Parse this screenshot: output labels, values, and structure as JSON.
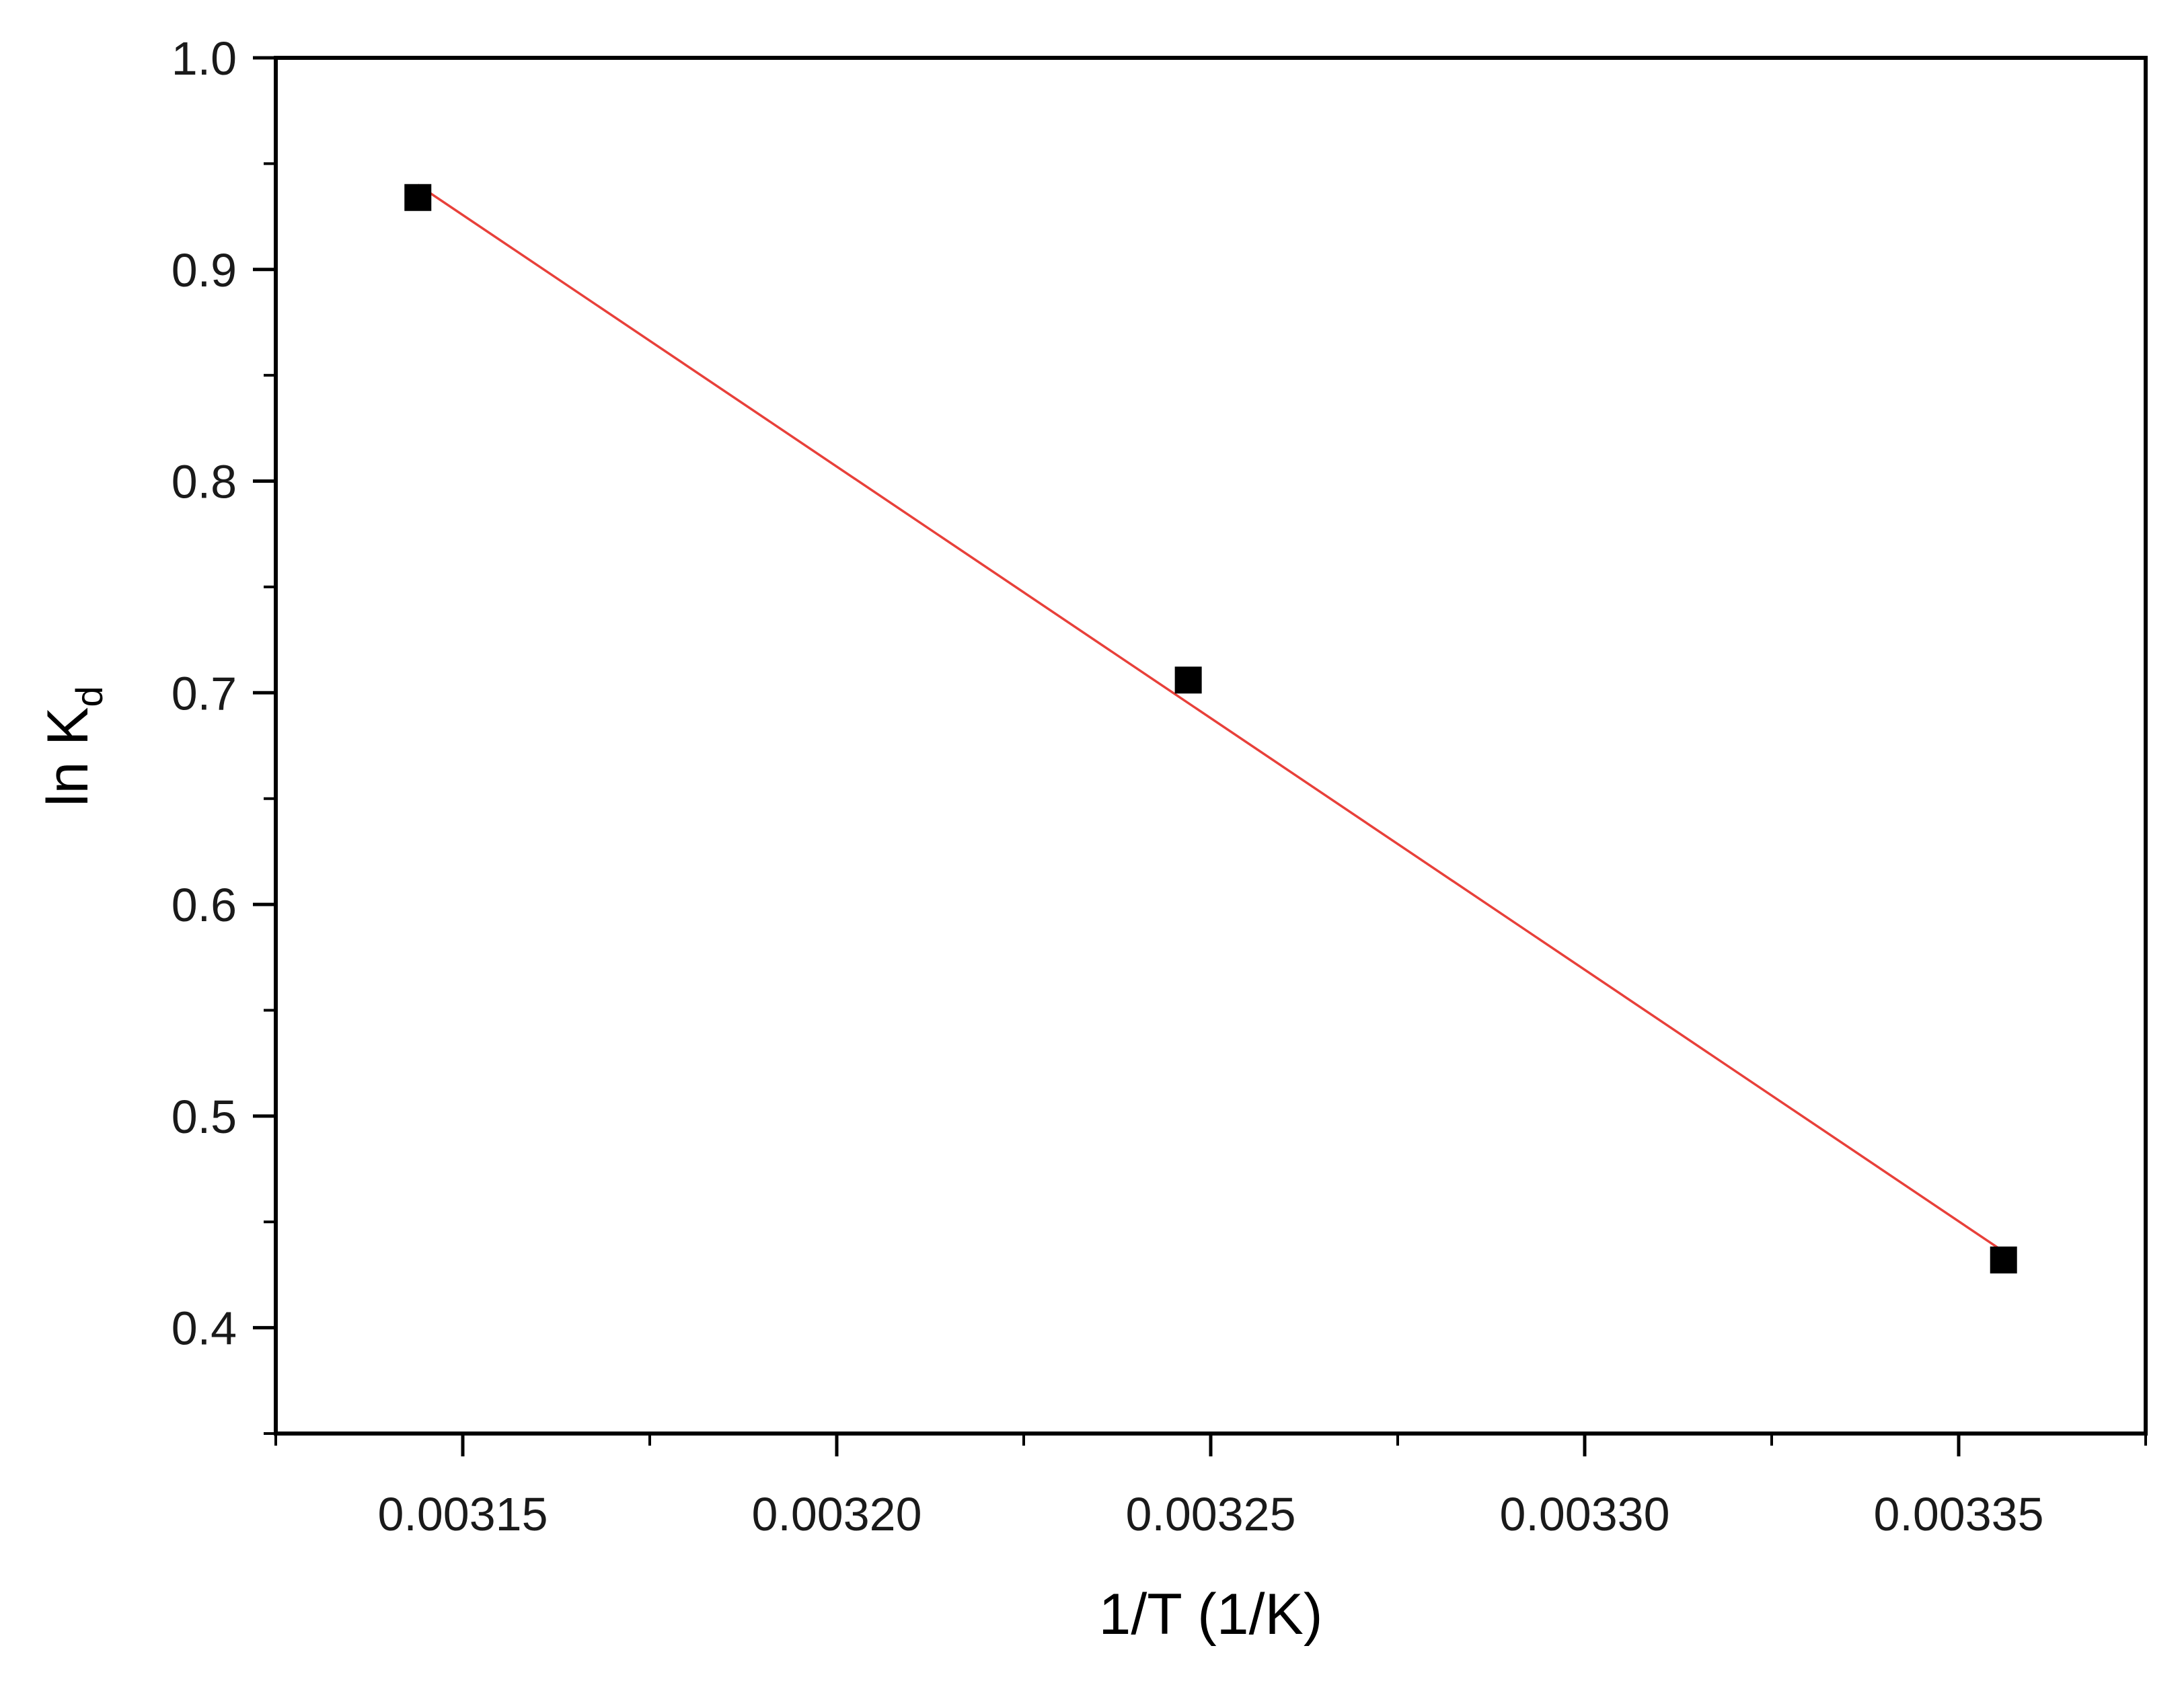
{
  "chart_data": {
    "type": "scatter",
    "title": "",
    "xlabel": "1/T (1/K)",
    "ylabel": {
      "main": "ln K",
      "subscript": "d"
    },
    "xlim": [
      0.003125,
      0.003375
    ],
    "ylim": [
      0.35,
      1.0
    ],
    "x_ticks": [
      "0.00315",
      "0.00320",
      "0.00325",
      "0.00330",
      "0.00335"
    ],
    "x_tick_values": [
      0.00315,
      0.0032,
      0.00325,
      0.0033,
      0.00335
    ],
    "y_ticks": [
      "0.4",
      "0.5",
      "0.6",
      "0.7",
      "0.8",
      "0.9",
      "1.0"
    ],
    "y_tick_values": [
      0.4,
      0.5,
      0.6,
      0.7,
      0.8,
      0.9,
      1.0
    ],
    "grid": false,
    "legend": "none",
    "series": [
      {
        "marker": "square",
        "color": "#000000",
        "points": [
          {
            "x": 0.003144,
            "y": 0.934
          },
          {
            "x": 0.003247,
            "y": 0.706
          },
          {
            "x": 0.003356,
            "y": 0.432
          }
        ]
      }
    ],
    "fit_line": {
      "color": "#e8403a",
      "from": {
        "x": 0.003144,
        "y": 0.94
      },
      "to": {
        "x": 0.003356,
        "y": 0.436
      }
    }
  }
}
